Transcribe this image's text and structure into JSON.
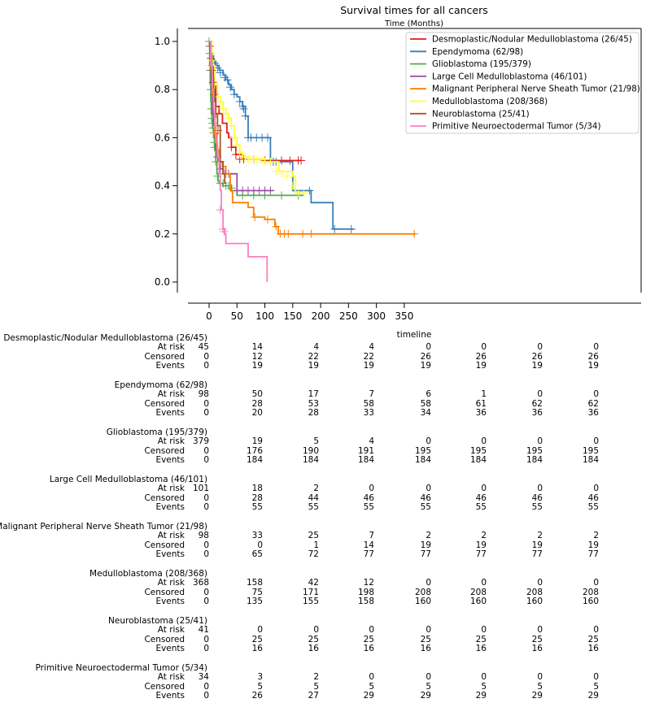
{
  "chart_data": {
    "type": "line",
    "title": "Survival times for all cancers",
    "subtitle": "Time (Months)",
    "xlabel": "timeline",
    "ylabel": "",
    "xlim": [
      -18,
      388
    ],
    "ylim": [
      -0.05,
      1.05
    ],
    "xticks": [
      "0",
      "50",
      "100",
      "150",
      "200",
      "250",
      "300",
      "350"
    ],
    "xtick_values": [
      0,
      50,
      100,
      150,
      200,
      250,
      300,
      350
    ],
    "yticks": [
      "0.0",
      "0.2",
      "0.4",
      "0.6",
      "0.8",
      "1.0"
    ],
    "ytick_values": [
      0.0,
      0.2,
      0.4,
      0.6,
      0.8,
      1.0
    ],
    "grid": false,
    "legend_position": "top-right",
    "series": [
      {
        "name": "Desmoplastic/Nodular Medulloblastoma (26/45)",
        "color": "#e41a1c",
        "x": [
          0,
          2,
          5,
          8,
          12,
          18,
          24,
          32,
          35,
          40,
          48,
          60,
          100,
          165
        ],
        "y": [
          1.0,
          0.95,
          0.9,
          0.82,
          0.73,
          0.7,
          0.66,
          0.62,
          0.6,
          0.56,
          0.53,
          0.51,
          0.505,
          0.505
        ],
        "censor_x": [
          40,
          48,
          55,
          62,
          70,
          80,
          100,
          130,
          145,
          160,
          165
        ],
        "censor_y": [
          0.56,
          0.53,
          0.51,
          0.51,
          0.51,
          0.51,
          0.505,
          0.505,
          0.505,
          0.505,
          0.505
        ]
      },
      {
        "name": "Ependymoma (62/98)",
        "color": "#377eb8",
        "x": [
          0,
          2,
          5,
          8,
          12,
          18,
          25,
          30,
          35,
          40,
          45,
          50,
          55,
          60,
          65,
          70,
          80,
          110,
          150,
          183,
          222,
          260
        ],
        "y": [
          1.0,
          0.97,
          0.94,
          0.92,
          0.9,
          0.88,
          0.86,
          0.84,
          0.82,
          0.8,
          0.78,
          0.77,
          0.75,
          0.73,
          0.69,
          0.6,
          0.6,
          0.5,
          0.38,
          0.33,
          0.22,
          0.22
        ],
        "censor_x": [
          10,
          15,
          20,
          28,
          33,
          38,
          45,
          55,
          60,
          62,
          65,
          70,
          75,
          85,
          95,
          105,
          115,
          120,
          180,
          225,
          255
        ],
        "censor_y": [
          0.91,
          0.89,
          0.87,
          0.85,
          0.84,
          0.81,
          0.78,
          0.75,
          0.73,
          0.72,
          0.69,
          0.6,
          0.6,
          0.6,
          0.6,
          0.6,
          0.5,
          0.5,
          0.38,
          0.22,
          0.22
        ]
      },
      {
        "name": "Glioblastoma (195/379)",
        "color": "#4daf4a",
        "x": [
          0,
          1,
          2,
          3,
          4,
          5,
          6,
          8,
          10,
          12,
          14,
          16,
          18,
          20,
          25,
          30,
          40,
          50,
          60,
          170
        ],
        "y": [
          1.0,
          0.9,
          0.82,
          0.75,
          0.7,
          0.67,
          0.64,
          0.6,
          0.55,
          0.5,
          0.45,
          0.42,
          0.41,
          0.41,
          0.4,
          0.4,
          0.38,
          0.36,
          0.36,
          0.36
        ],
        "censor_x": [
          0,
          1,
          2,
          3,
          4,
          5,
          6,
          7,
          8,
          9,
          10,
          12,
          15,
          20,
          25,
          30,
          35,
          40,
          60,
          80,
          100,
          130,
          160
        ],
        "censor_y": [
          1.0,
          0.95,
          0.88,
          0.8,
          0.72,
          0.68,
          0.66,
          0.64,
          0.62,
          0.58,
          0.56,
          0.5,
          0.44,
          0.41,
          0.41,
          0.4,
          0.4,
          0.39,
          0.36,
          0.36,
          0.36,
          0.36,
          0.36
        ]
      },
      {
        "name": "Large Cell Medulloblastoma (46/101)",
        "color": "#984ea3",
        "x": [
          0,
          2,
          4,
          6,
          8,
          10,
          12,
          14,
          16,
          20,
          25,
          50,
          115
        ],
        "y": [
          1.0,
          0.9,
          0.8,
          0.7,
          0.65,
          0.6,
          0.55,
          0.52,
          0.5,
          0.47,
          0.45,
          0.38,
          0.38
        ],
        "censor_x": [
          15,
          20,
          28,
          35,
          50,
          60,
          70,
          80,
          90,
          100,
          110
        ],
        "censor_y": [
          0.52,
          0.47,
          0.45,
          0.45,
          0.38,
          0.38,
          0.38,
          0.38,
          0.38,
          0.38,
          0.38
        ]
      },
      {
        "name": "Malignant Peripheral Nerve Sheath Tumor (21/98)",
        "color": "#ff7f00",
        "x": [
          0,
          2,
          4,
          6,
          8,
          10,
          14,
          18,
          24,
          30,
          38,
          42,
          55,
          70,
          80,
          100,
          118,
          124,
          370
        ],
        "y": [
          1.0,
          0.95,
          0.88,
          0.78,
          0.7,
          0.62,
          0.55,
          0.5,
          0.48,
          0.45,
          0.38,
          0.33,
          0.33,
          0.31,
          0.27,
          0.26,
          0.23,
          0.2,
          0.2
        ],
        "censor_x": [
          5,
          10,
          20,
          30,
          82,
          105,
          120,
          128,
          135,
          142,
          168,
          183,
          368
        ],
        "censor_y": [
          0.9,
          0.62,
          0.5,
          0.45,
          0.27,
          0.26,
          0.23,
          0.2,
          0.2,
          0.2,
          0.2,
          0.2,
          0.2
        ]
      },
      {
        "name": "Medulloblastoma (208/368)",
        "color": "#ffff33",
        "x": [
          0,
          5,
          10,
          15,
          20,
          25,
          30,
          35,
          40,
          45,
          50,
          55,
          60,
          70,
          80,
          100,
          115,
          125,
          150,
          155,
          175
        ],
        "y": [
          1.0,
          0.9,
          0.82,
          0.77,
          0.75,
          0.72,
          0.7,
          0.68,
          0.65,
          0.6,
          0.57,
          0.54,
          0.52,
          0.51,
          0.51,
          0.5,
          0.5,
          0.46,
          0.44,
          0.37,
          0.37
        ],
        "censor_x": [
          5,
          10,
          15,
          20,
          25,
          30,
          35,
          40,
          45,
          50,
          55,
          60,
          65,
          70,
          75,
          80,
          85,
          90,
          95,
          100,
          110,
          120,
          130,
          140,
          150,
          160,
          170
        ],
        "censor_y": [
          0.92,
          0.82,
          0.77,
          0.75,
          0.72,
          0.7,
          0.68,
          0.65,
          0.6,
          0.57,
          0.54,
          0.52,
          0.52,
          0.51,
          0.51,
          0.51,
          0.51,
          0.51,
          0.51,
          0.5,
          0.5,
          0.46,
          0.45,
          0.44,
          0.4,
          0.37,
          0.37
        ]
      },
      {
        "name": "Neuroblastoma (25/41)",
        "color": "#a65628",
        "x": [
          0,
          2,
          4,
          6,
          8,
          10,
          12,
          15,
          20,
          25,
          28
        ],
        "y": [
          1.0,
          0.95,
          0.9,
          0.85,
          0.8,
          0.75,
          0.7,
          0.65,
          0.5,
          0.45,
          0.41
        ],
        "censor_x": [
          1,
          3,
          5,
          7,
          9,
          12,
          16
        ],
        "censor_y": [
          0.98,
          0.93,
          0.88,
          0.83,
          0.78,
          0.7,
          0.63
        ]
      },
      {
        "name": "Primitive Neuroectodermal Tumor (5/34)",
        "color": "#f781bf",
        "x": [
          0,
          3,
          6,
          8,
          10,
          12,
          15,
          18,
          20,
          22,
          25,
          28,
          30,
          50,
          70,
          104,
          104
        ],
        "y": [
          1.0,
          0.9,
          0.8,
          0.72,
          0.65,
          0.58,
          0.52,
          0.45,
          0.38,
          0.3,
          0.22,
          0.2,
          0.16,
          0.16,
          0.105,
          0.105,
          0.0
        ],
        "censor_x": [
          20,
          25,
          27
        ],
        "censor_y": [
          0.3,
          0.22,
          0.21
        ]
      }
    ]
  },
  "risk_table": {
    "row_labels": [
      "At risk",
      "Censored",
      "Events"
    ],
    "groups": [
      {
        "name": "Desmoplastic/Nodular Medulloblastoma (26/45)",
        "at_risk": [
          "45",
          "14",
          "4",
          "4",
          "0",
          "0",
          "0",
          "0"
        ],
        "censored": [
          "0",
          "12",
          "22",
          "22",
          "26",
          "26",
          "26",
          "26"
        ],
        "events": [
          "0",
          "19",
          "19",
          "19",
          "19",
          "19",
          "19",
          "19"
        ]
      },
      {
        "name": "Ependymoma (62/98)",
        "at_risk": [
          "98",
          "50",
          "17",
          "7",
          "6",
          "1",
          "0",
          "0"
        ],
        "censored": [
          "0",
          "28",
          "53",
          "58",
          "58",
          "61",
          "62",
          "62"
        ],
        "events": [
          "0",
          "20",
          "28",
          "33",
          "34",
          "36",
          "36",
          "36"
        ]
      },
      {
        "name": "Glioblastoma (195/379)",
        "at_risk": [
          "379",
          "19",
          "5",
          "4",
          "0",
          "0",
          "0",
          "0"
        ],
        "censored": [
          "0",
          "176",
          "190",
          "191",
          "195",
          "195",
          "195",
          "195"
        ],
        "events": [
          "0",
          "184",
          "184",
          "184",
          "184",
          "184",
          "184",
          "184"
        ]
      },
      {
        "name": "Large Cell Medulloblastoma (46/101)",
        "at_risk": [
          "101",
          "18",
          "2",
          "0",
          "0",
          "0",
          "0",
          "0"
        ],
        "censored": [
          "0",
          "28",
          "44",
          "46",
          "46",
          "46",
          "46",
          "46"
        ],
        "events": [
          "0",
          "55",
          "55",
          "55",
          "55",
          "55",
          "55",
          "55"
        ]
      },
      {
        "name": "Malignant Peripheral Nerve Sheath Tumor (21/98)",
        "at_risk": [
          "98",
          "33",
          "25",
          "7",
          "2",
          "2",
          "2",
          "2"
        ],
        "censored": [
          "0",
          "0",
          "1",
          "14",
          "19",
          "19",
          "19",
          "19"
        ],
        "events": [
          "0",
          "65",
          "72",
          "77",
          "77",
          "77",
          "77",
          "77"
        ]
      },
      {
        "name": "Medulloblastoma (208/368)",
        "at_risk": [
          "368",
          "158",
          "42",
          "12",
          "0",
          "0",
          "0",
          "0"
        ],
        "censored": [
          "0",
          "75",
          "171",
          "198",
          "208",
          "208",
          "208",
          "208"
        ],
        "events": [
          "0",
          "135",
          "155",
          "158",
          "160",
          "160",
          "160",
          "160"
        ]
      },
      {
        "name": "Neuroblastoma (25/41)",
        "at_risk": [
          "41",
          "0",
          "0",
          "0",
          "0",
          "0",
          "0",
          "0"
        ],
        "censored": [
          "0",
          "25",
          "25",
          "25",
          "25",
          "25",
          "25",
          "25"
        ],
        "events": [
          "0",
          "16",
          "16",
          "16",
          "16",
          "16",
          "16",
          "16"
        ]
      },
      {
        "name": "Primitive Neuroectodermal Tumor (5/34)",
        "at_risk": [
          "34",
          "3",
          "2",
          "0",
          "0",
          "0",
          "0",
          "0"
        ],
        "censored": [
          "0",
          "5",
          "5",
          "5",
          "5",
          "5",
          "5",
          "5"
        ],
        "events": [
          "0",
          "26",
          "27",
          "29",
          "29",
          "29",
          "29",
          "29"
        ]
      }
    ]
  }
}
